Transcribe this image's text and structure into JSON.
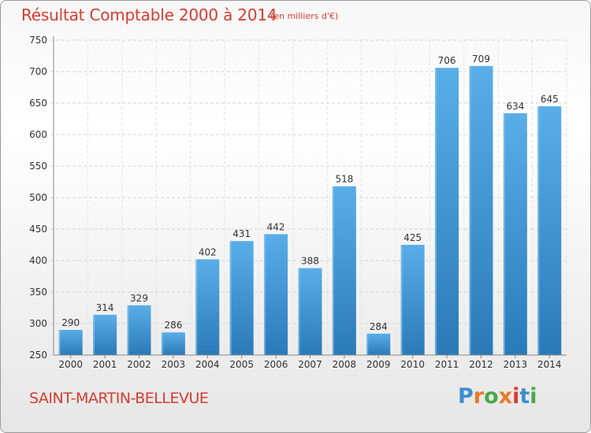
{
  "header": {
    "title": "Résultat Comptable 2000 à 2014",
    "subtitle": "(en milliers d'€)"
  },
  "footer": {
    "commune": "SAINT-MARTIN-BELLEVUE",
    "logo": "Proxiti"
  },
  "colors": {
    "title": "#d63c2e",
    "bar_light": "#5aaee8",
    "bar_dark": "#2a7ab8",
    "logo": [
      "#3a8fd0",
      "#e8792a",
      "#4aa84a",
      "#e8792a",
      "#d63c2e",
      "#3a8fd0",
      "#4aa84a"
    ]
  },
  "chart_data": {
    "type": "bar",
    "categories": [
      "2000",
      "2001",
      "2002",
      "2003",
      "2004",
      "2005",
      "2006",
      "2007",
      "2008",
      "2009",
      "2010",
      "2011",
      "2012",
      "2013",
      "2014"
    ],
    "values": [
      290,
      314,
      329,
      286,
      402,
      431,
      442,
      388,
      518,
      284,
      425,
      706,
      709,
      634,
      645
    ],
    "title": "Résultat Comptable 2000 à 2014",
    "subtitle": "(en milliers d'€)",
    "xlabel": "",
    "ylabel": "",
    "ylim": [
      250,
      750
    ],
    "yticks": [
      250,
      300,
      350,
      400,
      450,
      500,
      550,
      600,
      650,
      700,
      750
    ],
    "grid": true,
    "data_labels": true
  }
}
